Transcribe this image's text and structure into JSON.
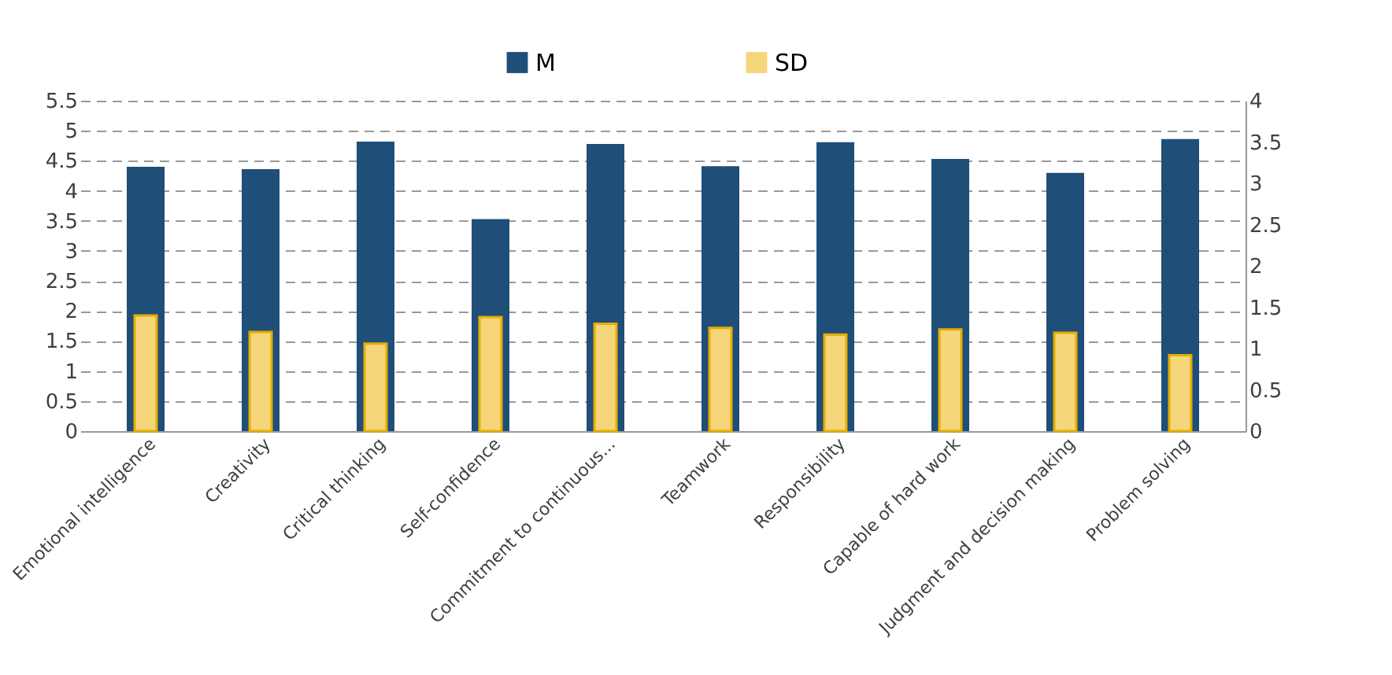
{
  "chart_data": {
    "type": "bar",
    "categories": [
      "Emotional intelligence",
      "Creativity",
      "Critical thinking",
      "Self-confidence",
      "Commitment to continuous...",
      "Teamwork",
      "Responsibility",
      "Capable of hard work",
      "Judgment and decision making",
      "Problem solving"
    ],
    "series": [
      {
        "name": "M",
        "color": "#1f4e79",
        "values": [
          4.4,
          4.36,
          4.82,
          3.53,
          4.78,
          4.41,
          4.81,
          4.53,
          4.3,
          4.86
        ]
      },
      {
        "name": "SD",
        "color": "#f5d67a",
        "axis": "y2",
        "values": [
          1.4,
          1.2,
          1.06,
          1.38,
          1.3,
          1.25,
          1.17,
          1.23,
          1.19,
          0.92
        ]
      }
    ],
    "ylim": [
      0,
      5.5
    ],
    "yticks": [
      0,
      0.5,
      1,
      1.5,
      2,
      2.5,
      3,
      3.5,
      4,
      4.5,
      5,
      5.5
    ],
    "y2lim": [
      0,
      4
    ],
    "y2ticks": [
      0,
      0.5,
      1,
      1.5,
      2,
      2.5,
      3,
      3.5,
      4
    ],
    "grid": "y",
    "legend": "top"
  }
}
